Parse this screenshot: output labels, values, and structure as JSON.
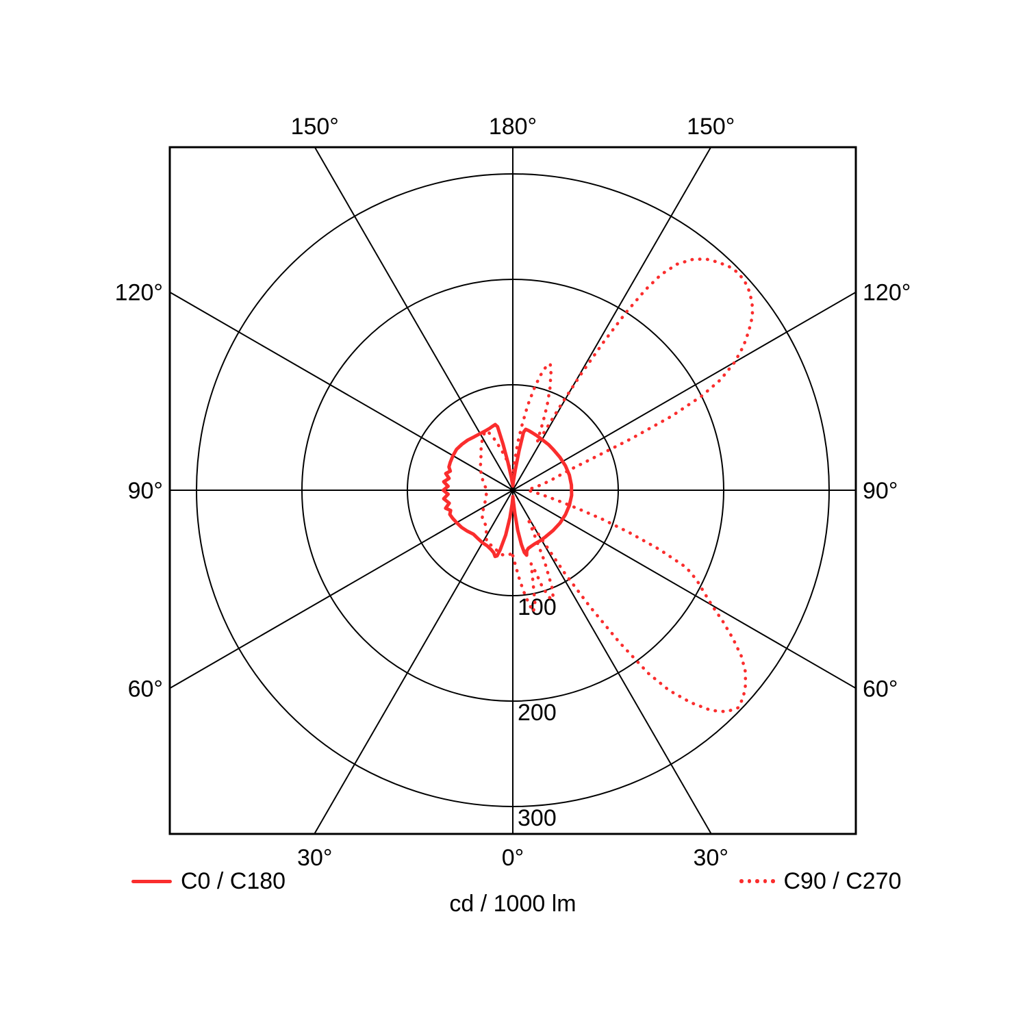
{
  "page": {
    "background": "#ffffff",
    "line_color": "#000000",
    "accent_red": "#fa2d2d"
  },
  "chart_data": {
    "type": "polar",
    "subtype": "luminous-intensity-distribution",
    "caption": "cd / 1000 lm",
    "units_label": "cd / 1000 lm",
    "grid": "on",
    "radial_rings": [
      100,
      200,
      300
    ],
    "ring_labels": [
      "100",
      "200",
      "300"
    ],
    "ring_max": 300,
    "angle_step_deg": 30,
    "gamma_zero_direction": "down",
    "angle_labels": {
      "top": [
        "150°",
        "180°",
        "150°"
      ],
      "bottom": [
        "30°",
        "0°",
        "30°"
      ],
      "left": [
        "120°",
        "90°",
        "60°"
      ],
      "right": [
        "120°",
        "90°",
        "60°"
      ]
    },
    "legend_position": "bottom",
    "series": [
      {
        "name": "C0 / C180",
        "style": "solid",
        "color": "#fa2d2d",
        "points_right_deg_cd": [
          [
            0,
            6
          ],
          [
            3,
            11
          ],
          [
            5,
            22
          ],
          [
            7,
            38
          ],
          [
            9,
            52
          ],
          [
            10.5,
            60
          ],
          [
            12,
            63
          ],
          [
            13,
            59
          ],
          [
            15,
            57
          ],
          [
            18,
            56
          ],
          [
            22,
            55
          ],
          [
            28,
            54.5
          ],
          [
            35,
            54
          ],
          [
            45,
            54
          ],
          [
            55,
            54.5
          ],
          [
            65,
            55
          ],
          [
            75,
            55.5
          ],
          [
            85,
            56
          ],
          [
            95,
            55.8
          ],
          [
            105,
            55.5
          ],
          [
            115,
            55
          ],
          [
            125,
            54.5
          ],
          [
            135,
            54.5
          ],
          [
            142,
            55
          ],
          [
            150,
            55.5
          ],
          [
            156,
            56.5
          ],
          [
            161,
            57.5
          ],
          [
            165,
            58.5
          ],
          [
            168,
            59
          ],
          [
            169.5,
            56
          ],
          [
            171,
            38
          ],
          [
            173,
            20
          ],
          [
            176,
            9
          ],
          [
            180,
            4
          ]
        ],
        "points_left_deg_cd": [
          [
            0,
            7
          ],
          [
            3,
            13
          ],
          [
            6,
            26
          ],
          [
            9,
            43
          ],
          [
            12,
            58
          ],
          [
            13.5,
            64
          ],
          [
            15,
            65
          ],
          [
            17,
            62
          ],
          [
            20,
            60
          ],
          [
            25,
            58
          ],
          [
            30,
            57.5
          ],
          [
            36,
            56.5
          ],
          [
            42,
            56
          ],
          [
            48,
            58
          ],
          [
            54,
            60
          ],
          [
            60,
            61.5
          ],
          [
            65,
            63
          ],
          [
            69,
            64
          ],
          [
            72,
            62
          ],
          [
            75,
            66
          ],
          [
            78.5,
            61.5
          ],
          [
            83,
            66
          ],
          [
            86.5,
            61.5
          ],
          [
            90,
            66
          ],
          [
            93.5,
            61.5
          ],
          [
            97,
            66
          ],
          [
            100.5,
            61.5
          ],
          [
            104,
            65.5
          ],
          [
            107,
            62
          ],
          [
            110,
            64.5
          ],
          [
            114,
            65
          ],
          [
            120,
            65.5
          ],
          [
            126,
            66
          ],
          [
            132,
            65
          ],
          [
            138,
            64
          ],
          [
            144,
            62.5
          ],
          [
            150,
            62
          ],
          [
            155,
            62
          ],
          [
            159,
            62.5
          ],
          [
            162,
            63.5
          ],
          [
            165,
            64.5
          ],
          [
            166.5,
            62
          ],
          [
            168,
            45
          ],
          [
            170,
            27
          ],
          [
            173,
            13
          ],
          [
            176,
            7
          ],
          [
            180,
            5
          ]
        ]
      },
      {
        "name": "C90 / C270",
        "style": "dotted",
        "color": "#fa2d2d",
        "points_right_deg_cd": [
          [
            0,
            62
          ],
          [
            2,
            71
          ],
          [
            4,
            83
          ],
          [
            6,
            96
          ],
          [
            8,
            108
          ],
          [
            9.5,
            117
          ],
          [
            11,
            111
          ],
          [
            12.5,
            88
          ],
          [
            14,
            72
          ],
          [
            15.5,
            80
          ],
          [
            17,
            96
          ],
          [
            19,
            108
          ],
          [
            20.5,
            110
          ],
          [
            22,
            99
          ],
          [
            24,
            74
          ],
          [
            26,
            45
          ],
          [
            28,
            30
          ],
          [
            30,
            46
          ],
          [
            32,
            92
          ],
          [
            33.5,
            132
          ],
          [
            35,
            176
          ],
          [
            36.5,
            216
          ],
          [
            38,
            241
          ],
          [
            40,
            263
          ],
          [
            42,
            281
          ],
          [
            44,
            292
          ],
          [
            46,
            297
          ],
          [
            48,
            294
          ],
          [
            50,
            288
          ],
          [
            52,
            280
          ],
          [
            54,
            268
          ],
          [
            56,
            252
          ],
          [
            58,
            235
          ],
          [
            60,
            218
          ],
          [
            62,
            205
          ],
          [
            64,
            194
          ],
          [
            66,
            180
          ],
          [
            68,
            150
          ],
          [
            70,
            118
          ],
          [
            72,
            90
          ],
          [
            74,
            66
          ],
          [
            76,
            50
          ],
          [
            79,
            35
          ],
          [
            82,
            26
          ],
          [
            86,
            18
          ],
          [
            90,
            14
          ],
          [
            94,
            16
          ],
          [
            98,
            22
          ],
          [
            102,
            30
          ],
          [
            105,
            38
          ],
          [
            108,
            48
          ],
          [
            110,
            60
          ],
          [
            112,
            85
          ],
          [
            113.5,
            122
          ],
          [
            115,
            166
          ],
          [
            116.5,
            200
          ],
          [
            118,
            223
          ],
          [
            120,
            243
          ],
          [
            122,
            258
          ],
          [
            124,
            270
          ],
          [
            126,
            281
          ],
          [
            128,
            288
          ],
          [
            130,
            293
          ],
          [
            132,
            296
          ],
          [
            134,
            297
          ],
          [
            136,
            295
          ],
          [
            138,
            291
          ],
          [
            140,
            286
          ],
          [
            142,
            278
          ],
          [
            144,
            265
          ],
          [
            145.5,
            248
          ],
          [
            146.5,
            228
          ],
          [
            147.5,
            200
          ],
          [
            148.5,
            165
          ],
          [
            149.5,
            130
          ],
          [
            150.5,
            95
          ],
          [
            151.5,
            65
          ],
          [
            152.5,
            50
          ],
          [
            154,
            55
          ],
          [
            156,
            70
          ],
          [
            158,
            87
          ],
          [
            160,
            103
          ],
          [
            162,
            117
          ],
          [
            163.5,
            125
          ],
          [
            165,
            121
          ],
          [
            166.5,
            112
          ],
          [
            168,
            100
          ],
          [
            170,
            82
          ],
          [
            172,
            62
          ],
          [
            174,
            46
          ],
          [
            176,
            30
          ],
          [
            178,
            17
          ],
          [
            180,
            11
          ]
        ],
        "points_left_deg_cd": [
          [
            0,
            60
          ],
          [
            3,
            61
          ],
          [
            6,
            62
          ],
          [
            9,
            62
          ],
          [
            12,
            61
          ],
          [
            15,
            59
          ],
          [
            18,
            57
          ],
          [
            21,
            56
          ],
          [
            24,
            56
          ],
          [
            27,
            55
          ],
          [
            30,
            50
          ],
          [
            34,
            45
          ],
          [
            38,
            42
          ],
          [
            43,
            40
          ],
          [
            48,
            39
          ],
          [
            54,
            35
          ],
          [
            60,
            32
          ],
          [
            66,
            29
          ],
          [
            72,
            27
          ],
          [
            78,
            26
          ],
          [
            84,
            25
          ],
          [
            90,
            25
          ],
          [
            96,
            26
          ],
          [
            102,
            28
          ],
          [
            108,
            30
          ],
          [
            114,
            32
          ],
          [
            120,
            35
          ],
          [
            126,
            38
          ],
          [
            132,
            41
          ],
          [
            138,
            45
          ],
          [
            143,
            50
          ],
          [
            148,
            55
          ],
          [
            152,
            59
          ],
          [
            155,
            62
          ],
          [
            157.5,
            59
          ],
          [
            160,
            52
          ],
          [
            163,
            43
          ],
          [
            166.5,
            34
          ],
          [
            170,
            27
          ],
          [
            173,
            20
          ],
          [
            176,
            14
          ],
          [
            180,
            10
          ]
        ]
      }
    ]
  }
}
